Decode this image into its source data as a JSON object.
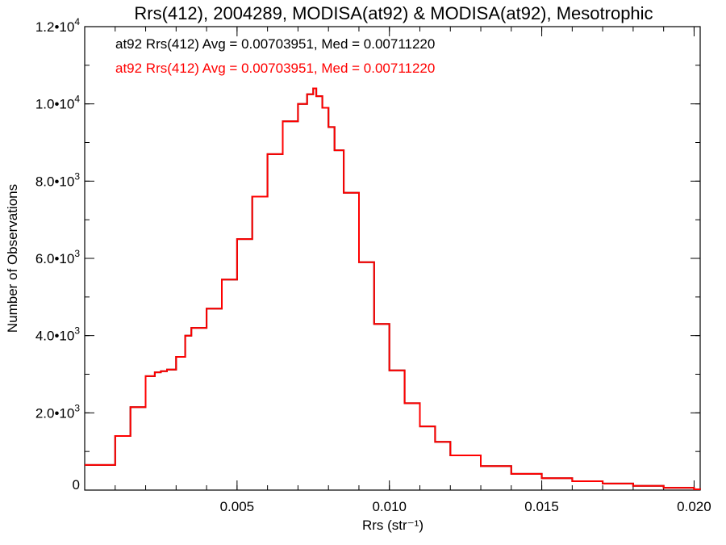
{
  "colors": {
    "background": "#ffffff",
    "axes": "#000000",
    "series_1": "#000000",
    "series_2": "#ff0000"
  },
  "chart_data": {
    "type": "line",
    "style": "step histogram",
    "title": "Rrs(412), 2004289, MODISA(at92) & MODISA(at92), Mesotrophic",
    "xlabel": "Rrs (str⁻¹)",
    "ylabel": "Number of Observations",
    "xlim": [
      0.0,
      0.0202
    ],
    "ylim": [
      0,
      12000
    ],
    "x_ticks": [
      {
        "value": 0.005,
        "label": "0.005"
      },
      {
        "value": 0.01,
        "label": "0.010"
      },
      {
        "value": 0.015,
        "label": "0.015"
      },
      {
        "value": 0.02,
        "label": "0.020"
      }
    ],
    "y_ticks": [
      {
        "value": 0,
        "base": "0",
        "exp": ""
      },
      {
        "value": 2000,
        "base": "2.0•10",
        "exp": "3"
      },
      {
        "value": 4000,
        "base": "4.0•10",
        "exp": "3"
      },
      {
        "value": 6000,
        "base": "6.0•10",
        "exp": "3"
      },
      {
        "value": 8000,
        "base": "8.0•10",
        "exp": "3"
      },
      {
        "value": 10000,
        "base": "1.0•10",
        "exp": "4"
      },
      {
        "value": 12000,
        "base": "1.2•10",
        "exp": "4"
      }
    ],
    "x_minor_step": 0.001,
    "y_minor_step": 1000,
    "grid": false,
    "annotations": [
      {
        "text": "at92 Rrs(412) Avg = 0.00703951, Med = 0.00711220",
        "color": "#000000"
      },
      {
        "text": "at92 Rrs(412) Avg = 0.00703951, Med = 0.00711220",
        "color": "#ff0000"
      }
    ],
    "series": [
      {
        "name": "at92 Rrs(412)",
        "color": "#000000",
        "x": [
          0.0,
          0.001,
          0.0015,
          0.002,
          0.0023,
          0.0025,
          0.0027,
          0.003,
          0.0033,
          0.0035,
          0.004,
          0.0045,
          0.005,
          0.0055,
          0.006,
          0.0065,
          0.007,
          0.0073,
          0.0075,
          0.0076,
          0.0078,
          0.008,
          0.0082,
          0.0085,
          0.009,
          0.0095,
          0.01,
          0.0105,
          0.011,
          0.0115,
          0.012,
          0.013,
          0.014,
          0.015,
          0.016,
          0.017,
          0.018,
          0.019,
          0.02,
          0.0202
        ],
        "y": [
          650,
          1400,
          2150,
          2950,
          3050,
          3080,
          3120,
          3450,
          4000,
          4200,
          4700,
          5450,
          6500,
          7600,
          8700,
          9550,
          10000,
          10250,
          10400,
          10200,
          9900,
          9400,
          8800,
          7700,
          5900,
          4300,
          3100,
          2250,
          1650,
          1250,
          900,
          620,
          420,
          310,
          230,
          170,
          110,
          60,
          20,
          15
        ]
      },
      {
        "name": "at92 Rrs(412)",
        "color": "#ff0000",
        "x": [
          0.0,
          0.001,
          0.0015,
          0.002,
          0.0023,
          0.0025,
          0.0027,
          0.003,
          0.0033,
          0.0035,
          0.004,
          0.0045,
          0.005,
          0.0055,
          0.006,
          0.0065,
          0.007,
          0.0073,
          0.0075,
          0.0076,
          0.0078,
          0.008,
          0.0082,
          0.0085,
          0.009,
          0.0095,
          0.01,
          0.0105,
          0.011,
          0.0115,
          0.012,
          0.013,
          0.014,
          0.015,
          0.016,
          0.017,
          0.018,
          0.019,
          0.02,
          0.0202
        ],
        "y": [
          650,
          1400,
          2150,
          2950,
          3050,
          3080,
          3120,
          3450,
          4000,
          4200,
          4700,
          5450,
          6500,
          7600,
          8700,
          9550,
          10000,
          10250,
          10400,
          10200,
          9900,
          9400,
          8800,
          7700,
          5900,
          4300,
          3100,
          2250,
          1650,
          1250,
          900,
          620,
          420,
          310,
          230,
          170,
          110,
          60,
          20,
          15
        ]
      }
    ]
  }
}
